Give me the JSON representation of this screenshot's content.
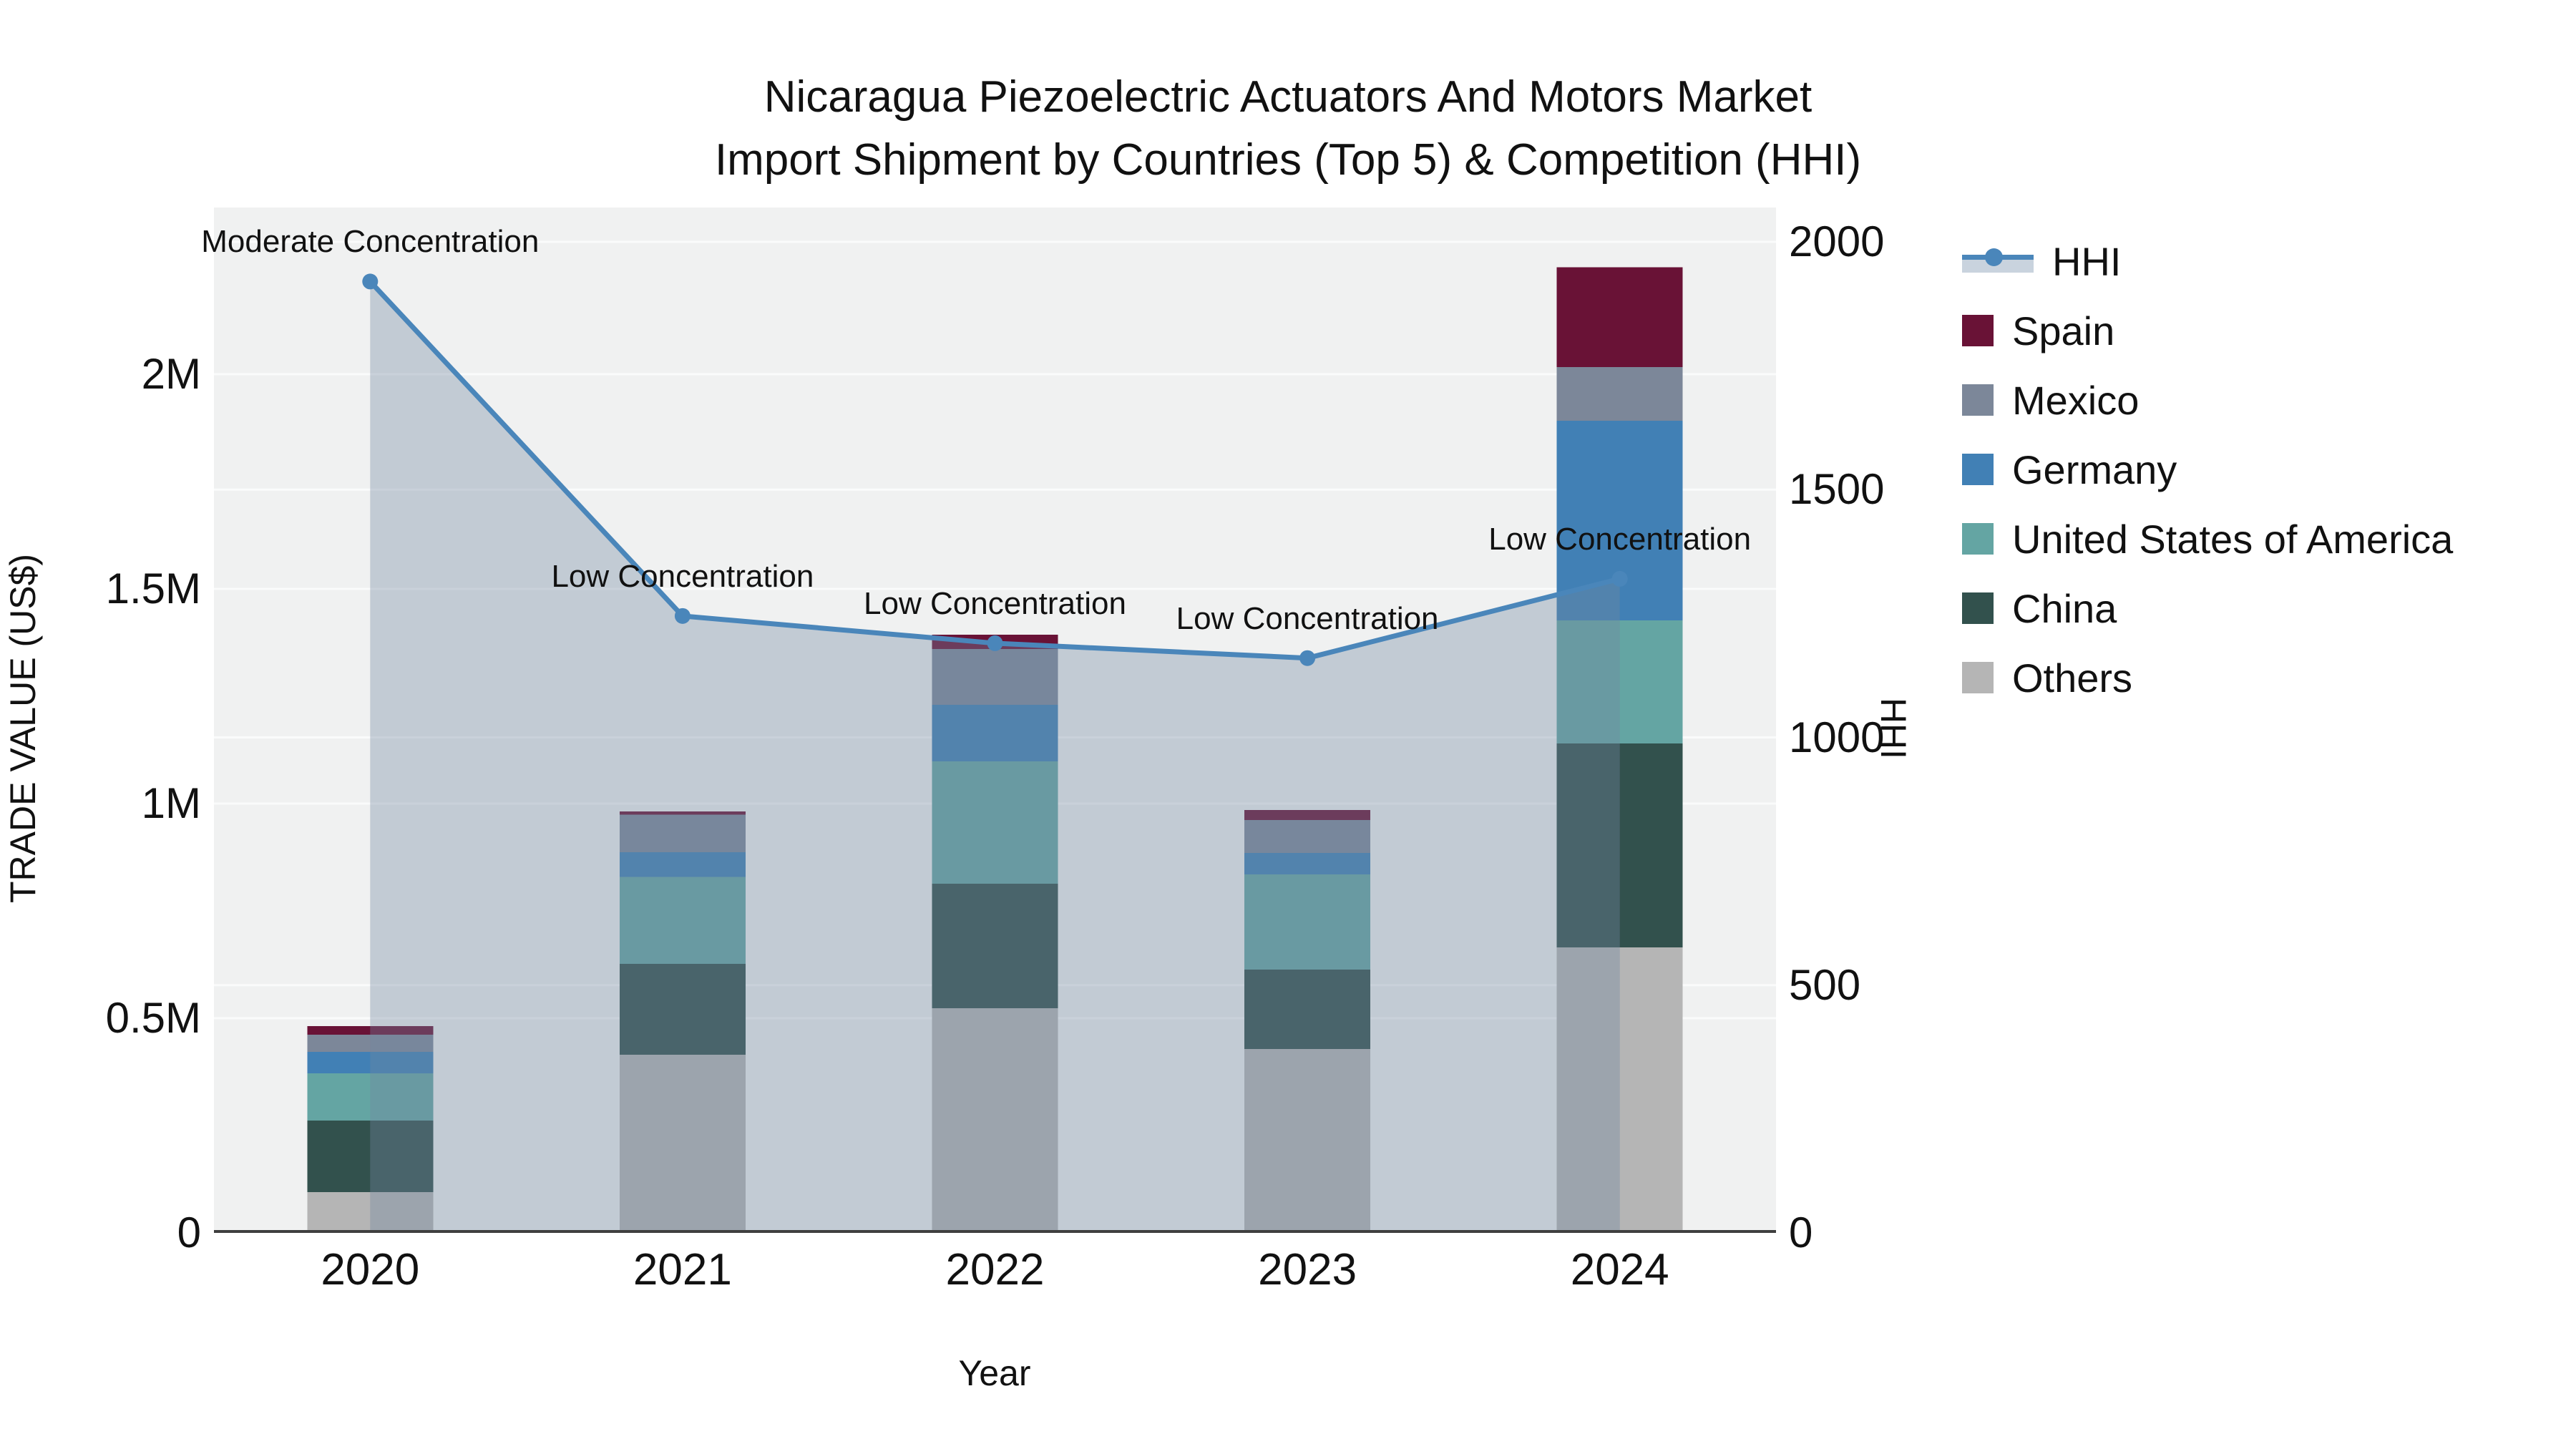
{
  "title": {
    "line1": "Nicaragua Piezoelectric Actuators And Motors Market",
    "line2": "Import Shipment by Countries (Top 5) & Competition (HHI)"
  },
  "chart_data": {
    "type": "bar+line",
    "title": "Nicaragua Piezoelectric Actuators And Motors Market",
    "subtitle": "Import Shipment by Countries (Top 5) & Competition (HHI)",
    "categories": [
      "2020",
      "2021",
      "2022",
      "2023",
      "2024"
    ],
    "xlabel": "Year",
    "y1": {
      "label": "TRADE VALUE (US$)",
      "tick_labels": [
        "0",
        "0.5M",
        "1M",
        "1.5M",
        "2M"
      ],
      "tick_values": [
        0,
        500000,
        1000000,
        1500000,
        2000000
      ],
      "range": [
        0,
        2390000
      ]
    },
    "y2": {
      "label": "HHI",
      "tick_labels": [
        "0",
        "500",
        "1000",
        "1500",
        "2000"
      ],
      "tick_values": [
        0,
        500,
        1000,
        1500,
        2000
      ],
      "range": [
        0,
        2069
      ]
    },
    "series": [
      {
        "name": "Spain",
        "color": "#691236",
        "values": [
          20000,
          8000,
          33000,
          23000,
          232000
        ]
      },
      {
        "name": "Mexico",
        "color": "#7c8799",
        "values": [
          40000,
          87000,
          130000,
          77000,
          125000
        ]
      },
      {
        "name": "Germany",
        "color": "#4180b5",
        "values": [
          50000,
          58000,
          132000,
          50000,
          465000
        ]
      },
      {
        "name": "United States of America",
        "color": "#64a5a3",
        "values": [
          110000,
          202000,
          285000,
          222000,
          287000
        ]
      },
      {
        "name": "China",
        "color": "#32514d",
        "values": [
          167000,
          212000,
          290000,
          185000,
          475000
        ]
      },
      {
        "name": "Others",
        "color": "#b5b5b5",
        "values": [
          95000,
          415000,
          523000,
          428000,
          665000
        ]
      }
    ],
    "stack_order_bottom_to_top": [
      "Others",
      "China",
      "United States of America",
      "Germany",
      "Mexico",
      "Spain"
    ],
    "bar_totals": [
      482000,
      982000,
      1393000,
      985000,
      2249000
    ],
    "hhi": {
      "name": "HHI",
      "line_color": "#4a86ba",
      "fill_color": "rgba(115,135,160,0.36)",
      "values": [
        1920,
        1245,
        1190,
        1160,
        1320
      ],
      "annotations": [
        "Moderate Concentration",
        "Low Concentration",
        "Low Concentration",
        "Low Concentration",
        "Low Concentration"
      ]
    },
    "legend": {
      "position": "right",
      "items": [
        "HHI",
        "Spain",
        "Mexico",
        "Germany",
        "United States of America",
        "China",
        "Others"
      ]
    },
    "grid": true,
    "plot_bg": "#f0f1f1",
    "grid_color": "#fafbfb",
    "axisline_color": "#3f3f3f"
  }
}
